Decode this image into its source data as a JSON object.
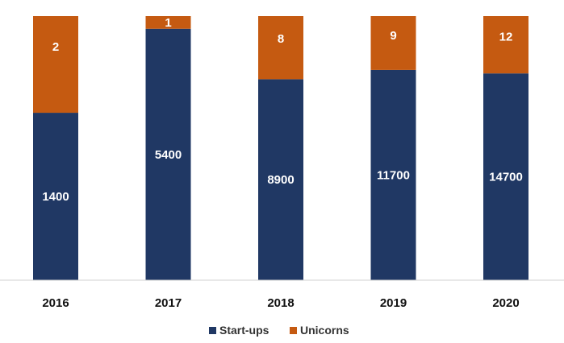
{
  "chart_data": {
    "type": "bar",
    "stacked": true,
    "normalized": true,
    "categories": [
      "2016",
      "2017",
      "2018",
      "2019",
      "2020"
    ],
    "series": [
      {
        "name": "Start-ups",
        "color": "#203864",
        "values": [
          1400,
          5400,
          8900,
          11700,
          14700
        ],
        "share_percent": [
          63.4,
          95.2,
          76.1,
          79.6,
          78.3
        ]
      },
      {
        "name": "Unicorns",
        "color": "#C55A11",
        "values": [
          2,
          1,
          8,
          9,
          12
        ],
        "share_percent": [
          36.6,
          4.8,
          23.9,
          20.4,
          21.7
        ]
      }
    ],
    "data_labels": true,
    "legend": {
      "position": "bottom",
      "items": [
        "Start-ups",
        "Unicorns"
      ]
    },
    "grid": false,
    "title": "",
    "xlabel": "",
    "ylabel": ""
  }
}
